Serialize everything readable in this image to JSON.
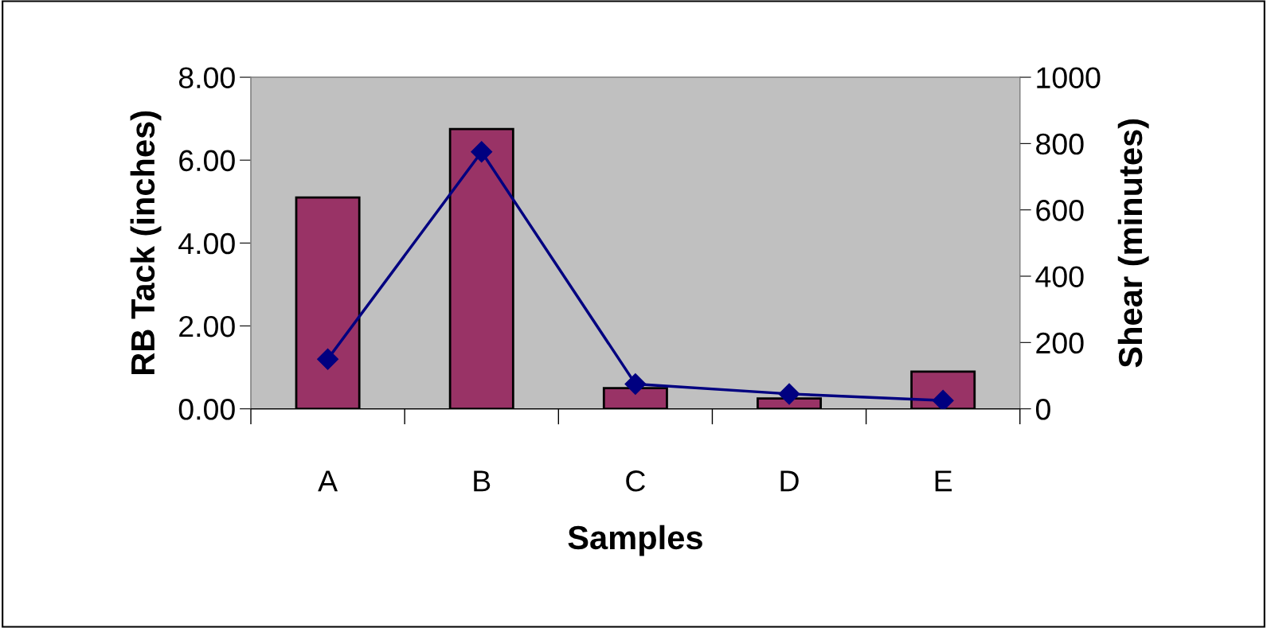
{
  "chart_data": {
    "type": "bar",
    "xlabel": "Samples",
    "ylabel": "RB Tack (inches)",
    "y2label": "Shear (minutes)",
    "categories": [
      "A",
      "B",
      "C",
      "D",
      "E"
    ],
    "series": [
      {
        "color": "#993366",
        "values": [
          5.1,
          6.75,
          0.5,
          0.25,
          0.9
        ]
      },
      {
        "type": "line",
        "axis": "y2",
        "color": "#000080",
        "marker": "diamond",
        "values": [
          150,
          775,
          75,
          45,
          25
        ]
      }
    ],
    "ylim": [
      0,
      8
    ],
    "yticks": [
      {
        "value": 0,
        "label": "0.00"
      },
      {
        "value": 2,
        "label": "2.00"
      },
      {
        "value": 4,
        "label": "4.00"
      },
      {
        "value": 6,
        "label": "6.00"
      },
      {
        "value": 8,
        "label": "8.00"
      }
    ],
    "y2lim": [
      0,
      1000
    ],
    "y2ticks": [
      0,
      200,
      400,
      600,
      800,
      1000
    ],
    "grid": false,
    "legend": false
  }
}
